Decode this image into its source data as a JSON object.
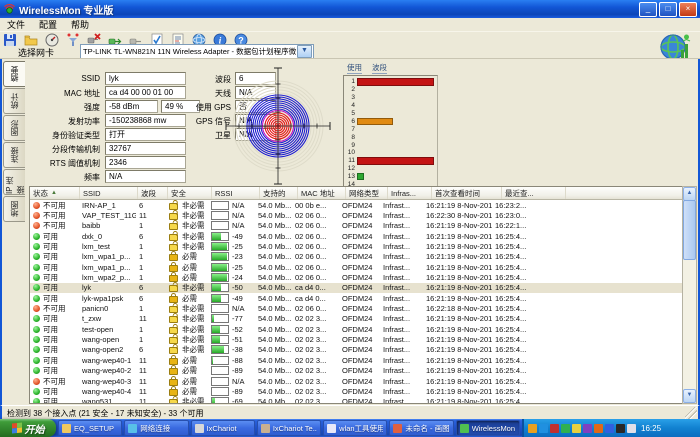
{
  "window": {
    "title": "WirelessMon 专业版",
    "minimize": "_",
    "maximize": "□",
    "close": "×"
  },
  "menu": {
    "items": [
      "文件",
      "配置",
      "帮助"
    ]
  },
  "toolbar": {
    "icons": [
      "save-icon",
      "open-folder-icon",
      "gauge-icon",
      "signal-test-icon",
      "disconnect-icon",
      "connect-icon",
      "connect-disabled-icon",
      "verify-icon",
      "report-icon",
      "web-icon",
      "info-icon",
      "help-icon"
    ],
    "adapter_label": "选择网卡",
    "adapter_value": "TP-LINK TL-WN821N 11N Wireless Adapter - 数据包计划程序微型端口"
  },
  "tabs": [
    {
      "label": "摘要",
      "active": true
    },
    {
      "label": "统计",
      "active": false
    },
    {
      "label": "图形",
      "active": false
    },
    {
      "label": "连接",
      "active": false
    },
    {
      "label": "IP 连接",
      "active": false
    },
    {
      "label": "地图",
      "active": false
    }
  ],
  "summary": {
    "fields_left": [
      {
        "label": "SSID",
        "value": "lyk"
      },
      {
        "label": "MAC 地址",
        "value": "ca d4 00 00 01 00"
      },
      {
        "label": "强度",
        "value": "-58 dBm",
        "value2": "49 %"
      },
      {
        "label": "发射功率",
        "value": "-150238868 mw"
      },
      {
        "label": "身份验证类型",
        "value": "打开"
      },
      {
        "label": "分段传输机制",
        "value": "32767"
      },
      {
        "label": "RTS 阈值机制",
        "value": "2346"
      },
      {
        "label": "频率",
        "value": "N/A"
      }
    ],
    "fields_right": [
      {
        "label": "波段",
        "value": "6"
      },
      {
        "label": "天线",
        "value": "N/A"
      },
      {
        "label": "使用 GPS",
        "value": "否"
      },
      {
        "label": "GPS 信号",
        "value": "N/A"
      },
      {
        "label": "卫星",
        "value": "N/A"
      }
    ]
  },
  "chart_data": [
    {
      "type": "other",
      "name": "signal-radar",
      "description": "Polar signal strength radar: faint outer rings, 8 blue rings, 7 red core rings with crosshair axes and tick marks",
      "colors": {
        "faint": "#dedbc9",
        "blue": "#1c1ccf",
        "magenta": "#c214c2",
        "red": "#e61414",
        "axis": "#222222"
      }
    },
    {
      "type": "bar",
      "title_cols": [
        "使用",
        "波段"
      ],
      "orientation": "horizontal",
      "categories": [
        1,
        2,
        3,
        4,
        5,
        6,
        7,
        8,
        9,
        10,
        11,
        12,
        13,
        14
      ],
      "values": [
        96,
        0,
        0,
        0,
        0,
        44,
        0,
        0,
        0,
        0,
        96,
        0,
        6,
        0
      ],
      "bar_colors": {
        "1": "#c41414",
        "6": "#e08a12",
        "11": "#c41414",
        "13": "#2fa832"
      },
      "xlim": [
        0,
        100
      ],
      "legend_position": "top"
    }
  ],
  "table": {
    "headers": [
      "状态",
      "SSID",
      "波段",
      "安全",
      "RSSI",
      "支持的",
      "MAC 地址",
      "网络类型",
      "Infras...",
      "首次查看时间",
      "最近查..."
    ],
    "sort": {
      "column": "状态",
      "direction": "asc",
      "glyph": "▲"
    },
    "status_labels": {
      "available": "可用",
      "unavailable": "不可用"
    },
    "security_labels": {
      "optional": "非必需",
      "required": "必需"
    },
    "rows": [
      {
        "available": false,
        "ssid": "IRN-AP_1",
        "channel": "6",
        "locked": false,
        "rssi": "N/A",
        "rssi_pct": 0,
        "speed": "54.0 Mb...",
        "mac": "00 0b e...",
        "net": "OFDM24",
        "infra": "Infrast...",
        "first": "16:21:19 8-Nov-2010",
        "last": "16:23:2...",
        "selected": false
      },
      {
        "available": false,
        "ssid": "VAP_TEST_11G",
        "channel": "11",
        "locked": false,
        "rssi": "N/A",
        "rssi_pct": 0,
        "speed": "54.0 Mb...",
        "mac": "02 06 0...",
        "net": "OFDM24",
        "infra": "Infrast...",
        "first": "16:22:30 8-Nov-2010",
        "last": "16:23:0...",
        "selected": false
      },
      {
        "available": false,
        "ssid": "baibb",
        "channel": "1",
        "locked": false,
        "rssi": "N/A",
        "rssi_pct": 0,
        "speed": "54.0 Mb...",
        "mac": "02 06 0...",
        "net": "OFDM24",
        "infra": "Infrast...",
        "first": "16:21:19 8-Nov-2010",
        "last": "16:22:1...",
        "selected": false
      },
      {
        "available": true,
        "ssid": "dxk_0",
        "channel": "6",
        "locked": false,
        "rssi": "-49",
        "rssi_pct": 55,
        "speed": "54.0 Mb...",
        "mac": "02 06 0...",
        "net": "OFDM24",
        "infra": "Infrast...",
        "first": "16:21:19 8-Nov-2010",
        "last": "16:25:4...",
        "selected": false
      },
      {
        "available": true,
        "ssid": "lxm_test",
        "channel": "1",
        "locked": false,
        "rssi": "-25",
        "rssi_pct": 92,
        "speed": "54.0 Mb...",
        "mac": "02 06 0...",
        "net": "OFDM24",
        "infra": "Infrast...",
        "first": "16:21:19 8-Nov-2010",
        "last": "16:25:4...",
        "selected": false
      },
      {
        "available": true,
        "ssid": "lxm_wpa1_p...",
        "channel": "1",
        "locked": true,
        "rssi": "-23",
        "rssi_pct": 95,
        "speed": "54.0 Mb...",
        "mac": "02 06 0...",
        "net": "OFDM24",
        "infra": "Infrast...",
        "first": "16:21:19 8-Nov-2010",
        "last": "16:25:4...",
        "selected": false
      },
      {
        "available": true,
        "ssid": "lxm_wpa1_p...",
        "channel": "1",
        "locked": true,
        "rssi": "-25",
        "rssi_pct": 92,
        "speed": "54.0 Mb...",
        "mac": "02 06 0...",
        "net": "OFDM24",
        "infra": "Infrast...",
        "first": "16:21:19 8-Nov-2010",
        "last": "16:25:4...",
        "selected": false
      },
      {
        "available": true,
        "ssid": "lxm_wpa2_p...",
        "channel": "1",
        "locked": true,
        "rssi": "-24",
        "rssi_pct": 94,
        "speed": "54.0 Mb...",
        "mac": "02 06 0...",
        "net": "OFDM24",
        "infra": "Infrast...",
        "first": "16:21:19 8-Nov-2010",
        "last": "16:25:4...",
        "selected": false
      },
      {
        "available": true,
        "ssid": "lyk",
        "channel": "6",
        "locked": false,
        "rssi": "-50",
        "rssi_pct": 54,
        "speed": "54.0 Mb...",
        "mac": "ca d4 0...",
        "net": "OFDM24",
        "infra": "Infrast...",
        "first": "16:21:19 8-Nov-2010",
        "last": "16:25:4...",
        "selected": true
      },
      {
        "available": true,
        "ssid": "lyk-wpa1psk",
        "channel": "6",
        "locked": true,
        "rssi": "-49",
        "rssi_pct": 55,
        "speed": "54.0 Mb...",
        "mac": "ca d4 0...",
        "net": "OFDM24",
        "infra": "Infrast...",
        "first": "16:21:19 8-Nov-2010",
        "last": "16:25:4...",
        "selected": false
      },
      {
        "available": false,
        "ssid": "panicn0",
        "channel": "1",
        "locked": false,
        "rssi": "N/A",
        "rssi_pct": 0,
        "speed": "54.0 Mb...",
        "mac": "02 06 0...",
        "net": "OFDM24",
        "infra": "Infrast...",
        "first": "16:22:18 8-Nov-2010",
        "last": "16:25:4...",
        "selected": false
      },
      {
        "available": true,
        "ssid": "t_zxw",
        "channel": "11",
        "locked": false,
        "rssi": "-77",
        "rssi_pct": 14,
        "speed": "54.0 Mb...",
        "mac": "02 02 3...",
        "net": "OFDM24",
        "infra": "Infrast...",
        "first": "16:21:19 8-Nov-2010",
        "last": "16:25:4...",
        "selected": false
      },
      {
        "available": true,
        "ssid": "test-open",
        "channel": "1",
        "locked": false,
        "rssi": "-52",
        "rssi_pct": 50,
        "speed": "54.0 Mb...",
        "mac": "02 02 3...",
        "net": "OFDM24",
        "infra": "Infrast...",
        "first": "16:21:19 8-Nov-2010",
        "last": "16:25:4...",
        "selected": false
      },
      {
        "available": true,
        "ssid": "wang-open",
        "channel": "1",
        "locked": false,
        "rssi": "-51",
        "rssi_pct": 52,
        "speed": "54.0 Mb...",
        "mac": "02 02 3...",
        "net": "OFDM24",
        "infra": "Infrast...",
        "first": "16:21:19 8-Nov-2010",
        "last": "16:25:4...",
        "selected": false
      },
      {
        "available": true,
        "ssid": "wang-open2",
        "channel": "6",
        "locked": false,
        "rssi": "-38",
        "rssi_pct": 72,
        "speed": "54.0 Mb...",
        "mac": "02 02 3...",
        "net": "OFDM24",
        "infra": "Infrast...",
        "first": "16:21:19 8-Nov-2010",
        "last": "16:25:4...",
        "selected": false
      },
      {
        "available": true,
        "ssid": "wang-wep40-1",
        "channel": "11",
        "locked": true,
        "rssi": "-88",
        "rssi_pct": 4,
        "speed": "54.0 Mb...",
        "mac": "02 02 3...",
        "net": "OFDM24",
        "infra": "Infrast...",
        "first": "16:21:19 8-Nov-2010",
        "last": "16:25:4...",
        "selected": false
      },
      {
        "available": true,
        "ssid": "wang-wep40-2",
        "channel": "11",
        "locked": true,
        "rssi": "-89",
        "rssi_pct": 3,
        "speed": "54.0 Mb...",
        "mac": "02 02 3...",
        "net": "OFDM24",
        "infra": "Infrast...",
        "first": "16:21:19 8-Nov-2010",
        "last": "16:25:4...",
        "selected": false
      },
      {
        "available": false,
        "ssid": "wang-wep40-3",
        "channel": "11",
        "locked": true,
        "rssi": "N/A",
        "rssi_pct": 0,
        "speed": "54.0 Mb...",
        "mac": "02 02 3...",
        "net": "OFDM24",
        "infra": "Infrast...",
        "first": "16:21:19 8-Nov-2010",
        "last": "16:25:4...",
        "selected": false
      },
      {
        "available": true,
        "ssid": "wang-wep40-4",
        "channel": "11",
        "locked": true,
        "rssi": "-89",
        "rssi_pct": 3,
        "speed": "54.0 Mb...",
        "mac": "02 02 3...",
        "net": "OFDM24",
        "infra": "Infrast...",
        "first": "16:21:19 8-Nov-2010",
        "last": "16:25:4...",
        "selected": false
      },
      {
        "available": true,
        "ssid": "wang531",
        "channel": "11",
        "locked": false,
        "rssi": "-69",
        "rssi_pct": 18,
        "speed": "54.0 Mb...",
        "mac": "02 02 3...",
        "net": "OFDM24",
        "infra": "Infrast...",
        "first": "16:21:19 8-Nov-2010",
        "last": "16:25:4...",
        "selected": false
      }
    ]
  },
  "statusbar": {
    "text": "检测到 38 个接入点 (21 安全 - 17 未知安全) - 33 个可用"
  },
  "taskbar": {
    "start_label": "开始",
    "items": [
      {
        "label": "EQ_SETUP",
        "icon": "folder-icon",
        "color": "#f0c860",
        "active": false
      },
      {
        "label": "网络连接",
        "icon": "network-icon",
        "color": "#58c0e8",
        "active": false
      },
      {
        "label": "IxChariot",
        "icon": "ixchariot-icon",
        "color": "#d8d8d8",
        "active": false
      },
      {
        "label": "IxChariot Te...",
        "icon": "ixchariot-icon",
        "color": "#c8b090",
        "active": false
      },
      {
        "label": "wlan工具使用",
        "icon": "document-icon",
        "color": "#e8e8f8",
        "active": false
      },
      {
        "label": "未命名 - 画图",
        "icon": "paint-icon",
        "color": "#e06040",
        "active": false
      },
      {
        "label": "WirelessMon ...",
        "icon": "wirelessmon-icon",
        "color": "#50c050",
        "active": true
      }
    ],
    "tray_icons": [
      {
        "name": "tray-icon-1",
        "color": "#e8a020"
      },
      {
        "name": "tray-icon-2",
        "color": "#2090e0"
      },
      {
        "name": "tray-icon-3",
        "color": "#c03030"
      },
      {
        "name": "tray-icon-4",
        "color": "#30b050"
      },
      {
        "name": "tray-icon-5",
        "color": "#e8d040"
      },
      {
        "name": "tray-icon-6",
        "color": "#8040c0"
      },
      {
        "name": "tray-icon-7",
        "color": "#e06818"
      },
      {
        "name": "tray-icon-8",
        "color": "#3060e0"
      },
      {
        "name": "tray-icon-9",
        "color": "#282828"
      },
      {
        "name": "tray-icon-10",
        "color": "#e0e0e8"
      }
    ],
    "clock": "16:25"
  }
}
